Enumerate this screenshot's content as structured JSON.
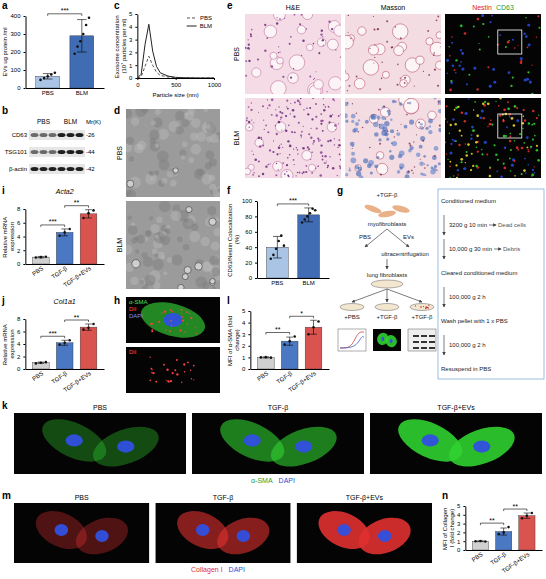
{
  "chart_data": [
    {
      "panel": "a",
      "type": "bar",
      "y_label": "EVs ug protein /ml",
      "categories": [
        "PBS",
        "BLM"
      ],
      "values": [
        65,
        290
      ],
      "error": [
        15,
        90
      ],
      "points": [
        [
          45,
          55,
          65,
          75,
          85
        ],
        [
          190,
          230,
          260,
          300,
          350,
          390
        ]
      ],
      "colors": [
        "#a9c4e4",
        "#3f6cb3"
      ],
      "ylim": [
        0,
        400
      ],
      "yticks": [
        0,
        100,
        200,
        300,
        400
      ],
      "annotations": [
        {
          "text": "***",
          "between": [
            "PBS",
            "BLM"
          ]
        }
      ]
    },
    {
      "panel": "c",
      "type": "line",
      "x_label": "Particle size (nm)",
      "y_label": "Exosome concentration (10⁷ particles per ml)",
      "x": [
        0,
        50,
        100,
        150,
        200,
        250,
        300,
        400,
        500,
        600,
        800,
        1000
      ],
      "series": [
        {
          "name": "PBS",
          "color": "#555555",
          "line_style": "dashed",
          "values": [
            0,
            0.1,
            0.9,
            1.7,
            1.0,
            0.45,
            0.2,
            0.08,
            0.03,
            0.01,
            0,
            0
          ]
        },
        {
          "name": "BLM",
          "color": "#222222",
          "line_style": "solid",
          "values": [
            0,
            0.3,
            2.6,
            4.2,
            2.1,
            0.9,
            0.4,
            0.15,
            0.05,
            0.02,
            0,
            0
          ]
        }
      ],
      "xlim": [
        0,
        1000
      ],
      "xticks": [
        0,
        500,
        1000
      ],
      "ylim": [
        0,
        5
      ],
      "yticks": [
        0,
        1,
        2,
        3,
        4,
        5
      ],
      "legend": "upper right"
    },
    {
      "panel": "f",
      "type": "bar",
      "y_label": "CD63/Nestin Colocalization (%)",
      "categories": [
        "PBS",
        "BLM"
      ],
      "values": [
        40,
        82
      ],
      "error": [
        14,
        9
      ],
      "points": [
        [
          25,
          30,
          38,
          48,
          55,
          42
        ],
        [
          72,
          76,
          80,
          84,
          90,
          88
        ]
      ],
      "colors": [
        "#a9c4e4",
        "#3f6cb3"
      ],
      "ylim": [
        0,
        100
      ],
      "yticks": [
        0,
        20,
        40,
        60,
        80,
        100
      ],
      "annotations": [
        {
          "text": "***",
          "between": [
            "PBS",
            "BLM"
          ]
        }
      ]
    },
    {
      "panel": "i",
      "type": "bar",
      "title": "Acta2",
      "y_label": "Relative mRNA expression",
      "categories": [
        "PBS",
        "TGF-β",
        "TGF-β+EVs"
      ],
      "values": [
        1,
        4.6,
        7.3
      ],
      "error": [
        0.1,
        0.5,
        0.6
      ],
      "points": [
        [
          0.95,
          1,
          1.05
        ],
        [
          4.1,
          4.6,
          5.1
        ],
        [
          6.7,
          7.4,
          7.8
        ]
      ],
      "colors": [
        "#d0d0d0",
        "#4a78c2",
        "#d9534f"
      ],
      "ylim": [
        0,
        8
      ],
      "yticks": [
        0,
        2,
        4,
        6,
        8
      ],
      "annotations": [
        {
          "text": "***",
          "between": [
            "PBS",
            "TGF-β"
          ]
        },
        {
          "text": "**",
          "between": [
            "TGF-β",
            "TGF-β+EVs"
          ]
        }
      ]
    },
    {
      "panel": "j",
      "type": "bar",
      "title": "Col1a1",
      "y_label": "Relative mRNA expression",
      "categories": [
        "PBS",
        "TGF-β",
        "TGF-β+EVs"
      ],
      "values": [
        1,
        4.2,
        6.7
      ],
      "error": [
        0.1,
        0.4,
        0.5
      ],
      "points": [
        [
          0.9,
          1,
          1.1
        ],
        [
          3.9,
          4.2,
          4.6
        ],
        [
          6.3,
          6.6,
          7.2
        ]
      ],
      "colors": [
        "#d0d0d0",
        "#4a78c2",
        "#d9534f"
      ],
      "ylim": [
        0,
        8
      ],
      "yticks": [
        0,
        2,
        4,
        6,
        8
      ],
      "annotations": [
        {
          "text": "***",
          "between": [
            "PBS",
            "TGF-β"
          ]
        },
        {
          "text": "**",
          "between": [
            "TGF-β",
            "TGF-β+EVs"
          ]
        }
      ]
    },
    {
      "panel": "l",
      "type": "bar",
      "y_label": "MFI of α-SMA (fold change)",
      "categories": [
        "PBS",
        "TGF-β",
        "TGF-β+EVs"
      ],
      "values": [
        1,
        2.4,
        3.6
      ],
      "error": [
        0.05,
        0.35,
        0.6
      ],
      "points": [
        [
          1,
          1.02,
          0.98
        ],
        [
          2.1,
          2.4,
          2.8
        ],
        [
          3.0,
          3.6,
          4.1
        ]
      ],
      "colors": [
        "#d0d0d0",
        "#4a78c2",
        "#d9534f"
      ],
      "ylim": [
        0,
        5
      ],
      "yticks": [
        0,
        1,
        2,
        3,
        4,
        5
      ],
      "annotations": [
        {
          "text": "**",
          "between": [
            "PBS",
            "TGF-β"
          ]
        },
        {
          "text": "*",
          "between": [
            "TGF-β",
            "TGF-β+EVs"
          ]
        }
      ]
    },
    {
      "panel": "n",
      "type": "bar",
      "y_label": "MFI of Collagen I (fold change)",
      "categories": [
        "PBS",
        "TGF-β",
        "TGF-β+EVs"
      ],
      "values": [
        1,
        2.1,
        3.9
      ],
      "error": [
        0.05,
        0.4,
        0.3
      ],
      "points": [
        [
          1,
          1.03,
          0.97
        ],
        [
          1.8,
          2.0,
          2.6
        ],
        [
          3.6,
          3.9,
          4.2
        ]
      ],
      "colors": [
        "#d0d0d0",
        "#4a78c2",
        "#d9534f"
      ],
      "ylim": [
        0,
        5
      ],
      "yticks": [
        0,
        1,
        2,
        3,
        4,
        5
      ],
      "annotations": [
        {
          "text": "**",
          "between": [
            "PBS",
            "TGF-β"
          ]
        },
        {
          "text": "**",
          "between": [
            "TGF-β",
            "TGF-β+EVs"
          ]
        }
      ]
    }
  ],
  "blot": {
    "letter": "b",
    "groups": [
      "PBS",
      "BLM"
    ],
    "mr_header": "Mr(K)",
    "rows": [
      {
        "label": "CD63",
        "mr": "-26"
      },
      {
        "label": "TSG101",
        "mr": "-44"
      },
      {
        "label": "β-actin",
        "mr": "-42"
      }
    ]
  },
  "tem": {
    "letter": "d",
    "rows": [
      "PBS",
      "BLM"
    ]
  },
  "histology": {
    "letter": "e",
    "rows": [
      "PBS",
      "BLM"
    ],
    "columns": [
      "H&E",
      "Masson"
    ],
    "fluorescence": [
      {
        "text": "Nestin",
        "color": "#e02020"
      },
      {
        "text": "CD63",
        "color": "#1f9e1f"
      }
    ]
  },
  "schematic": {
    "letter": "g",
    "source_treatment": "+TGF-β",
    "source": "myofibroblasts",
    "branches": [
      "PBS",
      "EVs"
    ],
    "method": "ultracentrifugation",
    "target": "lung fibroblasts",
    "conditions": [
      "+PBS",
      "+TGF-β",
      "+TGF-β"
    ],
    "flow_samples": [
      "Conditioned medium",
      "Cleared conditioned medium",
      "Wash pellet with 1 x PBS",
      "Resuspend in PBS"
    ],
    "flow_spins": [
      "3200 g 10 min",
      "10,000 g 30 min",
      "100,000 g 2 h",
      "100,000 g 2 h"
    ],
    "flow_removed": [
      "Dead cells",
      "Debris"
    ]
  },
  "uptake": {
    "letter": "h",
    "top_labels": [
      {
        "text": "α-SMA",
        "color": "#55e055"
      },
      {
        "text": "DiI",
        "color": "#ff5050"
      },
      {
        "text": "DAPI",
        "color": "#8090ff"
      }
    ],
    "bottom_labels": [
      {
        "text": "DiI",
        "color": "#ff5050"
      }
    ]
  },
  "asma_images": {
    "letter": "k",
    "columns": [
      "PBS",
      "TGF-β",
      "TGF-β+EVs"
    ],
    "stains": [
      {
        "text": "α-SMA",
        "color": "#1f9e1f"
      },
      {
        "text": "DAPI",
        "color": "#2b50d8"
      }
    ]
  },
  "collagen_images": {
    "letter": "m",
    "columns": [
      "PBS",
      "TGF-β",
      "TGF-β+EVs"
    ],
    "stains": [
      {
        "text": "Collagen I",
        "color": "#e03030"
      },
      {
        "text": "DAPI",
        "color": "#2b50d8"
      }
    ]
  }
}
